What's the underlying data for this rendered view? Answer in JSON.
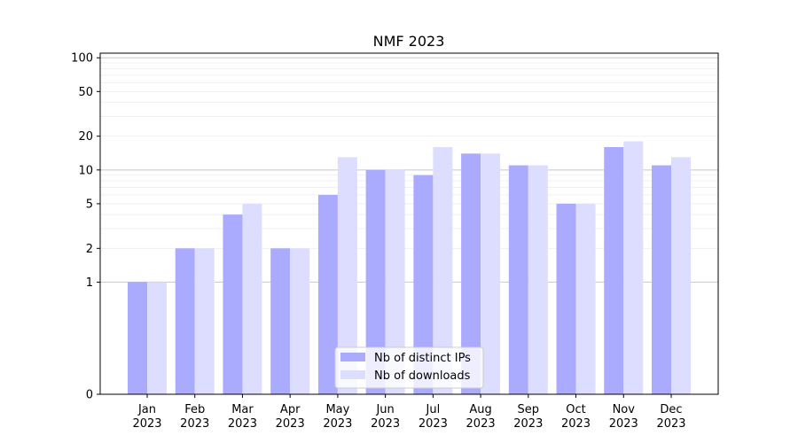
{
  "chart_data": {
    "type": "bar",
    "title": "NMF 2023",
    "xlabel": "",
    "ylabel": "",
    "categories": [
      [
        "Jan",
        "2023"
      ],
      [
        "Feb",
        "2023"
      ],
      [
        "Mar",
        "2023"
      ],
      [
        "Apr",
        "2023"
      ],
      [
        "May",
        "2023"
      ],
      [
        "Jun",
        "2023"
      ],
      [
        "Jul",
        "2023"
      ],
      [
        "Aug",
        "2023"
      ],
      [
        "Sep",
        "2023"
      ],
      [
        "Oct",
        "2023"
      ],
      [
        "Nov",
        "2023"
      ],
      [
        "Dec",
        "2023"
      ]
    ],
    "series": [
      {
        "name": "Nb of distinct IPs",
        "color": "#aaaaff",
        "values": [
          1,
          2,
          4,
          2,
          6,
          10,
          9,
          14,
          11,
          5,
          16,
          11
        ]
      },
      {
        "name": "Nb of downloads",
        "color": "#ddddff",
        "values": [
          1,
          2,
          5,
          2,
          13,
          10,
          16,
          14,
          11,
          5,
          18,
          13
        ]
      }
    ],
    "yscale": "symlog",
    "ylim": [
      0,
      110
    ],
    "yticks": [
      0,
      1,
      2,
      5,
      10,
      20,
      50,
      100
    ],
    "grid": true,
    "legend": "lower-center"
  }
}
